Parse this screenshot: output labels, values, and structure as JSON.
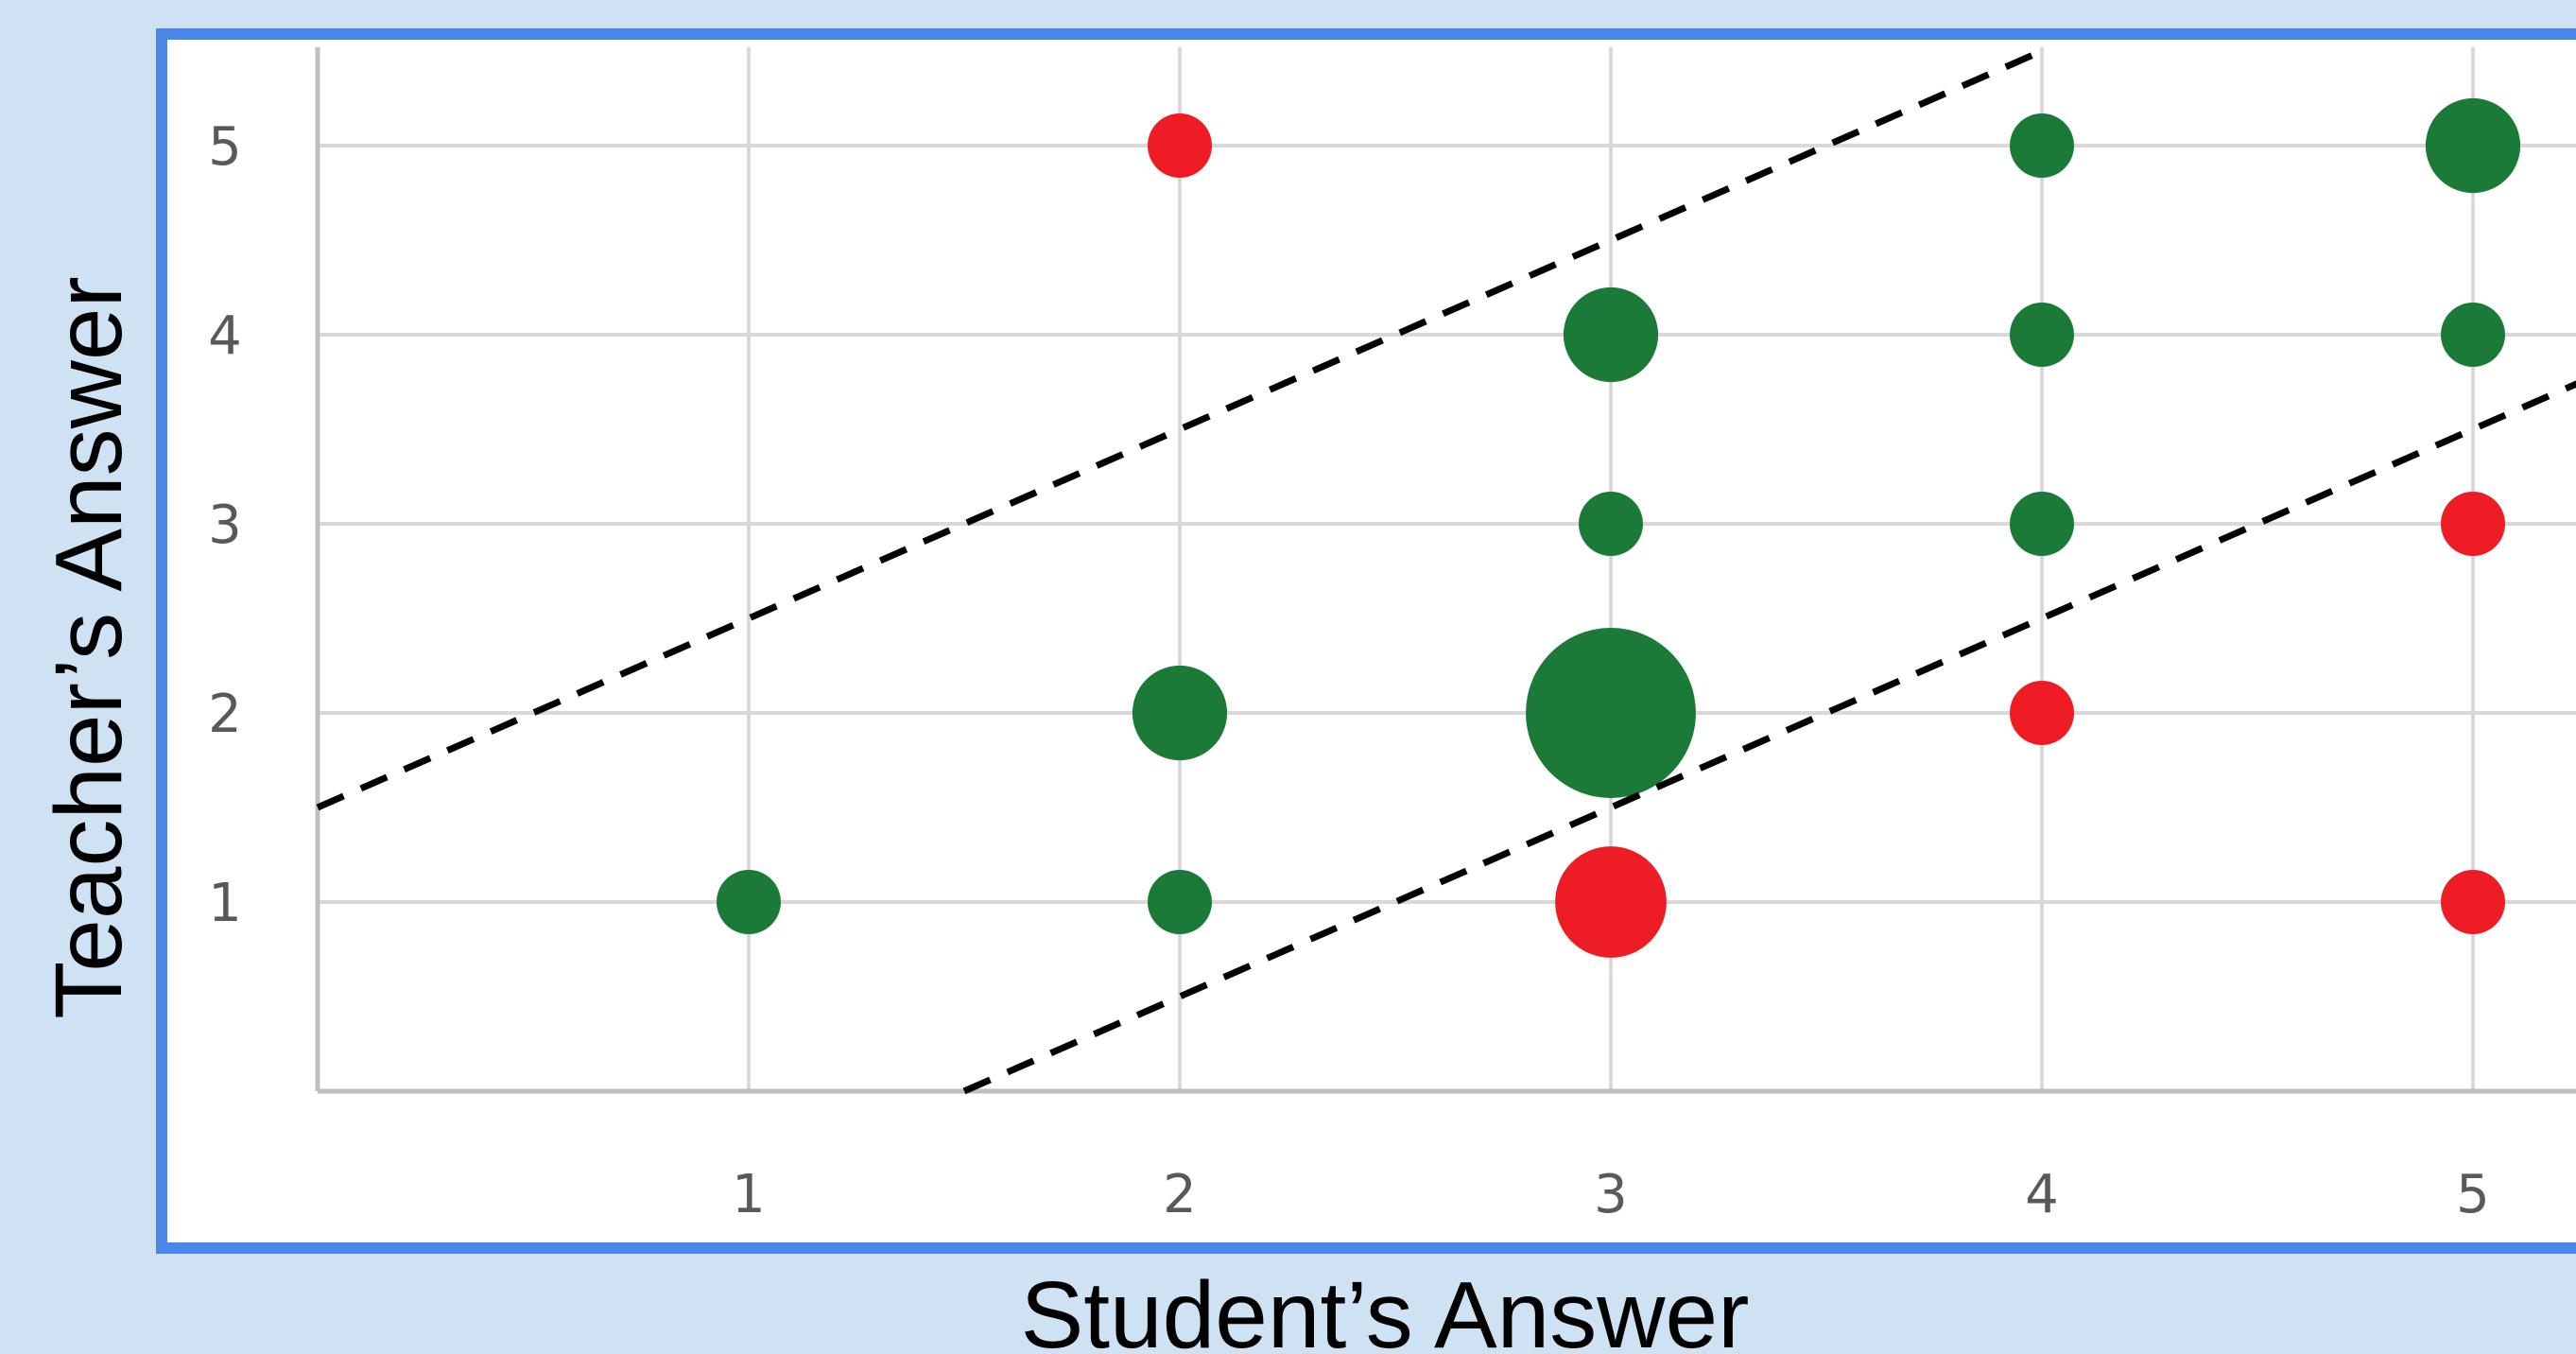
{
  "chart_data": {
    "type": "scatter",
    "xlabel": "Student’s Answer",
    "ylabel": "Teacher’s Answer",
    "xlim": [
      0,
      5.4
    ],
    "ylim": [
      0,
      5.5
    ],
    "x_ticks": [
      "1",
      "2",
      "3",
      "4",
      "5"
    ],
    "y_ticks": [
      "1",
      "2",
      "3",
      "4",
      "5"
    ],
    "grid": true,
    "colors": {
      "match": "#1b7a37",
      "mismatch": "#ee1c25",
      "frame": "#4a86e8",
      "plot_bg": "#ffffff",
      "page_bg": "#cfe2f3",
      "grid": "#d9d9d9"
    },
    "series": [
      {
        "color": "#1b7a37",
        "points": [
          {
            "x": 1,
            "y": 1,
            "size": 1
          },
          {
            "x": 2,
            "y": 1,
            "size": 1
          },
          {
            "x": 2,
            "y": 2,
            "size": 2
          },
          {
            "x": 3,
            "y": 2,
            "size": 6
          },
          {
            "x": 3,
            "y": 3,
            "size": 1
          },
          {
            "x": 3,
            "y": 4,
            "size": 2
          },
          {
            "x": 4,
            "y": 3,
            "size": 1
          },
          {
            "x": 4,
            "y": 4,
            "size": 1
          },
          {
            "x": 4,
            "y": 5,
            "size": 1
          },
          {
            "x": 5,
            "y": 4,
            "size": 1
          },
          {
            "x": 5,
            "y": 5,
            "size": 2
          }
        ]
      },
      {
        "color": "#ee1c25",
        "points": [
          {
            "x": 2,
            "y": 5,
            "size": 1
          },
          {
            "x": 3,
            "y": 1,
            "size": 3
          },
          {
            "x": 4,
            "y": 2,
            "size": 1
          },
          {
            "x": 5,
            "y": 3,
            "size": 1
          },
          {
            "x": 5,
            "y": 1,
            "size": 1
          }
        ]
      }
    ],
    "reference_lines": [
      {
        "style": "dashed",
        "from": {
          "x": 0,
          "y": 1.5
        },
        "to": {
          "x": 4,
          "y": 5.5
        }
      },
      {
        "style": "dashed",
        "from": {
          "x": 1.5,
          "y": 0
        },
        "to": {
          "x": 5.4,
          "y": 3.9
        }
      }
    ]
  }
}
